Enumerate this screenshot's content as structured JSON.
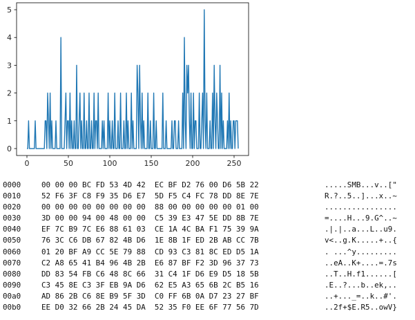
{
  "chart_data": {
    "type": "line",
    "title": "",
    "xlabel": "",
    "ylabel": "",
    "xlim": [
      -12.5,
      267.5
    ],
    "ylim": [
      -0.25,
      5.25
    ],
    "xticks": [
      0,
      50,
      100,
      150,
      200,
      250
    ],
    "yticks": [
      0,
      1,
      2,
      3,
      4,
      5
    ],
    "grid": false,
    "series": [
      {
        "color": "#1f77b4",
        "values": [
          0,
          0,
          1,
          0,
          0,
          0,
          0,
          0,
          0,
          0,
          1,
          0,
          0,
          0,
          0,
          0,
          0,
          0,
          0,
          0,
          0,
          0,
          1,
          1,
          0,
          2,
          1,
          0,
          2,
          0,
          1,
          0,
          0,
          0,
          0,
          1,
          0,
          0,
          0,
          0,
          0,
          4,
          0,
          0,
          0,
          0,
          1,
          2,
          0,
          1,
          1,
          0,
          2,
          0,
          1,
          0,
          0,
          1,
          0,
          0,
          3,
          0,
          0,
          1,
          2,
          0,
          1,
          0,
          0,
          2,
          0,
          0,
          1,
          0,
          0,
          2,
          0,
          0,
          1,
          0,
          0,
          2,
          0,
          1,
          1,
          0,
          2,
          0,
          0,
          0,
          0,
          1,
          0,
          1,
          0,
          0,
          0,
          0,
          2,
          0,
          1,
          0,
          0,
          1,
          0,
          0,
          2,
          0,
          0,
          0,
          1,
          0,
          0,
          2,
          0,
          0,
          0,
          1,
          0,
          0,
          2,
          0,
          1,
          0,
          0,
          0,
          2,
          0,
          1,
          0,
          0,
          0,
          0,
          3,
          2,
          0,
          3,
          1,
          0,
          2,
          0,
          1,
          0,
          0,
          0,
          0,
          2,
          0,
          0,
          1,
          0,
          0,
          0,
          2,
          0,
          0,
          1,
          0,
          0,
          0,
          0,
          0,
          0,
          0,
          2,
          0,
          0,
          0,
          1,
          0,
          0,
          0,
          0,
          0,
          0,
          1,
          0,
          0,
          1,
          1,
          0,
          0,
          0,
          1,
          0,
          0,
          0,
          0,
          2,
          0,
          4,
          1,
          0,
          3,
          2,
          3,
          1,
          0,
          2,
          0,
          0,
          2,
          0,
          1,
          1,
          0,
          0,
          0,
          2,
          0,
          0,
          1,
          2,
          0,
          5,
          1,
          0,
          2,
          0,
          0,
          0,
          1,
          0,
          0,
          2,
          0,
          3,
          1,
          0,
          2,
          1,
          0,
          0,
          3,
          0,
          2,
          0,
          1,
          0,
          0,
          0,
          0,
          1,
          0,
          2,
          0,
          1,
          0,
          0,
          1,
          1,
          0,
          1,
          1,
          1,
          0
        ]
      }
    ]
  },
  "hexdump": {
    "rows": [
      {
        "offset": "0000",
        "bytes": "00 00 00 BC FD 53 4D 42  EC BF D2 76 00 D6 5B 22",
        "ascii": ".....SMB...v..[\""
      },
      {
        "offset": "0010",
        "bytes": "52 F6 3F C8 F9 35 D6 E7  5D F5 C4 FC 78 DD 8E 7E",
        "ascii": "R.?..5..]...x..~"
      },
      {
        "offset": "0020",
        "bytes": "00 00 00 00 00 00 00 00  88 00 00 00 00 00 01 00",
        "ascii": "................"
      },
      {
        "offset": "0030",
        "bytes": "3D 00 00 94 00 48 00 00  C5 39 E3 47 5E DD 8B 7E",
        "ascii": "=....H...9.G^..~"
      },
      {
        "offset": "0040",
        "bytes": "EF 7C B9 7C E6 88 61 03  CE 1A 4C BA F1 75 39 9A",
        "ascii": ".|.|..a...L..u9."
      },
      {
        "offset": "0050",
        "bytes": "76 3C C6 DB 67 82 4B D6  1E 8B 1F ED 2B AB CC 7B",
        "ascii": "v<..g.K.....+..{"
      },
      {
        "offset": "0060",
        "bytes": "01 20 BF A9 CC 5E 79 88  CD 93 C3 81 8C ED D5 1A",
        "ascii": ". ...^y........."
      },
      {
        "offset": "0070",
        "bytes": "C2 A8 65 41 B4 96 4B 2B  E6 87 BF F2 3D 96 37 73",
        "ascii": "..eA..K+....=.7s"
      },
      {
        "offset": "0080",
        "bytes": "DD 83 54 FB C6 48 8C 66  31 C4 1F D6 E9 D5 18 5B",
        "ascii": "..T..H.f1......["
      },
      {
        "offset": "0090",
        "bytes": "C3 45 8E C3 3F EB 9A D6  62 E5 A3 65 6B 2C B5 16",
        "ascii": ".E..?...b..ek,.."
      },
      {
        "offset": "00a0",
        "bytes": "AD 86 2B C6 8E B9 5F 3D  C0 FF 6B 0A D7 23 27 BF",
        "ascii": "..+..._=..k..#'."
      },
      {
        "offset": "00b0",
        "bytes": "EE D0 32 66 2B 24 45 DA  52 35 F0 EE 6F 77 56 7D",
        "ascii": "..2f+$E.R5..owV}"
      }
    ]
  }
}
